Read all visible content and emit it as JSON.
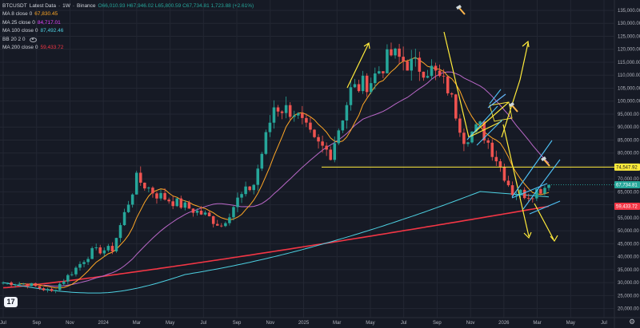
{
  "header": {
    "symbol": "BTCUSDT",
    "title": "Latest Data",
    "interval": "1W",
    "exchange": "Binance",
    "ohlc": "O66,010.93 H67,946.02 L65,800.59 C67,734.81 1,723.88 (+2.61%)"
  },
  "indicators": [
    {
      "name": "MA 8 close 0",
      "value": "67,830.45",
      "color": "#ffa726"
    },
    {
      "name": "MA 25 close 0",
      "value": "84,717.01",
      "color": "#e040fb"
    },
    {
      "name": "MA 100 close 0",
      "value": "87,492.46",
      "color": "#4dd0e1"
    },
    {
      "name": "BB 20 2 0",
      "value": "",
      "color": "#b2b5be"
    },
    {
      "name": "MA 200 close 0",
      "value": "59,433.72",
      "color": "#f23645"
    }
  ],
  "colors": {
    "up": "#26a69a",
    "down": "#ef5350",
    "background": "#161a25",
    "grid": "#232733",
    "annotation": "#ffeb3b",
    "channel": "#4fc3f7"
  },
  "icons": [
    "hammer-icon",
    "tradingview-logo-icon",
    "settings-gear-icon",
    "eye-icon"
  ],
  "chart_data": {
    "type": "candlestick",
    "x_ticks": [
      "Jul",
      "Sep",
      "Nov",
      "2024",
      "Mar",
      "May",
      "Jul",
      "Sep",
      "Nov",
      "2025",
      "Mar",
      "May",
      "Jul",
      "Sep",
      "Nov",
      "2026",
      "Mar",
      "May",
      "Jul"
    ],
    "y_ticks": [
      "135,000.00",
      "130,000.00",
      "125,000.00",
      "120,000.00",
      "115,000.00",
      "110,000.00",
      "105,000.00",
      "100,000.00",
      "95,000.00",
      "90,000.00",
      "85,000.00",
      "80,000.00",
      "75,000.00",
      "70,000.00",
      "65,000.00",
      "60,000.00",
      "55,000.00",
      "50,000.00",
      "45,000.00",
      "40,000.00",
      "35,000.00",
      "30,000.00",
      "25,000.00",
      "20,000.00"
    ],
    "y_tick_values": [
      135000,
      130000,
      125000,
      120000,
      115000,
      110000,
      105000,
      100000,
      95000,
      90000,
      85000,
      80000,
      75000,
      70000,
      65000,
      60000,
      55000,
      50000,
      45000,
      40000,
      35000,
      30000,
      25000,
      20000
    ],
    "ylim": [
      16500,
      139000
    ],
    "price_labels": [
      {
        "text": "74,547.92",
        "value": 74547.92,
        "color": "#ffeb3b",
        "kind": "horizontal-line"
      },
      {
        "text": "67,734.81",
        "value": 67734.81,
        "color": "#26a69a",
        "kind": "last-price"
      },
      {
        "text": "59,433.72",
        "value": 59433.72,
        "color": "#f23645",
        "kind": "ma200"
      }
    ],
    "key_closes": [
      {
        "period": "Jul 2023",
        "close": 30000
      },
      {
        "period": "Oct 2023",
        "close": 26500
      },
      {
        "period": "Dec 2023",
        "close": 42000
      },
      {
        "period": "Mar 2024",
        "close": 70000
      },
      {
        "period": "Aug 2024",
        "close": 52000
      },
      {
        "period": "Dec 2024",
        "close": 98000
      },
      {
        "period": "Apr 2025",
        "close": 80000
      },
      {
        "period": "Jul 2025",
        "close": 118000
      },
      {
        "period": "Oct 2025",
        "close": 122000
      },
      {
        "period": "Nov 2025",
        "close": 86000
      },
      {
        "period": "Feb 2026",
        "close": 65000
      },
      {
        "period": "Apr 2026",
        "close": 67734.81
      }
    ],
    "last_close": 67734.81,
    "grid": true
  }
}
